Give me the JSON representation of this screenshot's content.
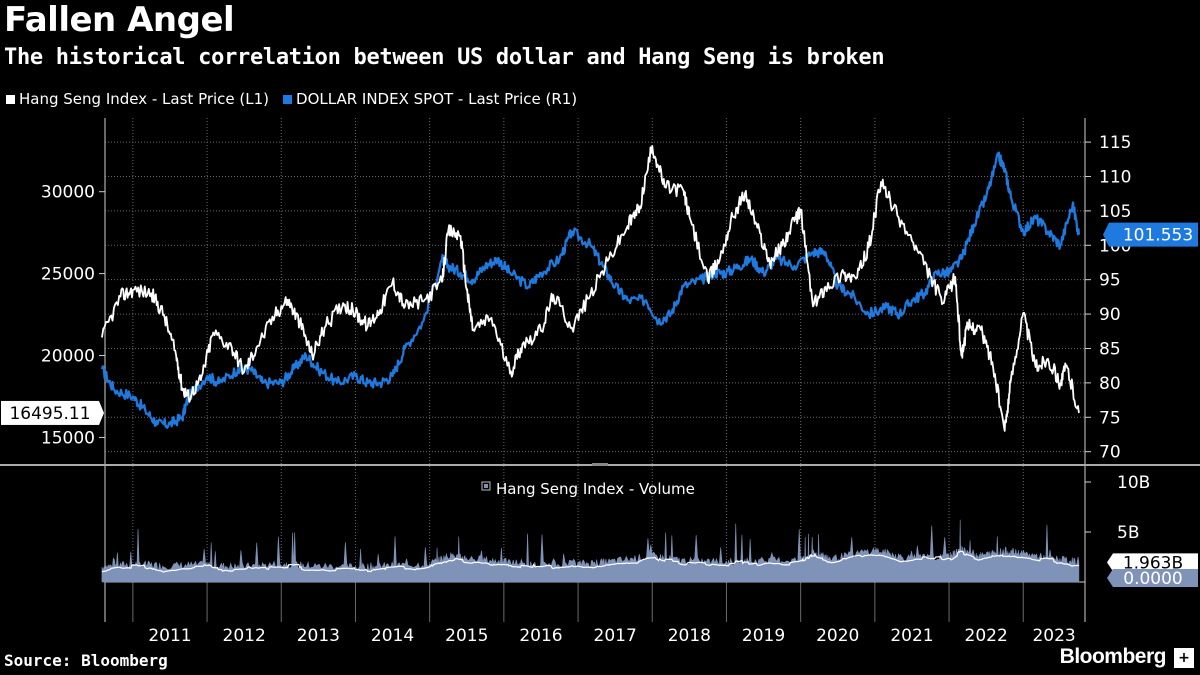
{
  "header": {
    "title": "Fallen Angel",
    "subtitle": "The historical correlation between US dollar and Hang Seng is broken"
  },
  "footer": {
    "source": "Source: Bloomberg",
    "brand": "Bloomberg",
    "brand_icon": "+"
  },
  "colors": {
    "hsi": "#ffffff",
    "dxy": "#1f7ae0",
    "volume_fill": "#7f93b8",
    "grid": "#6a6a6a",
    "background": "#000000"
  },
  "chart_data": [
    {
      "type": "line",
      "legend_placement": "top-left",
      "grid": true,
      "x_tick_labels": [
        "2011",
        "2012",
        "2013",
        "2014",
        "2015",
        "2016",
        "2017",
        "2018",
        "2019",
        "2020",
        "2021",
        "2022",
        "2023"
      ],
      "xlim": [
        "2010-08-16",
        "2023-10-31"
      ],
      "y_left": {
        "ticks": [
          15000,
          20000,
          25000,
          30000
        ],
        "lim": [
          13500,
          34500
        ]
      },
      "y_right": {
        "ticks": [
          70,
          75,
          80,
          85,
          90,
          95,
          100,
          105,
          110,
          115
        ],
        "lim": [
          68.5,
          118.5
        ]
      },
      "series": [
        {
          "name": "Hang Seng Index - Last Price (L1)",
          "axis": "left",
          "last_value_label": "16495.11",
          "x": [
            "2010-08",
            "2010-11",
            "2011-01",
            "2011-04",
            "2011-06",
            "2011-08",
            "2011-09",
            "2011-10",
            "2011-12",
            "2012-02",
            "2012-05",
            "2012-07",
            "2012-09",
            "2012-12",
            "2013-02",
            "2013-04",
            "2013-06",
            "2013-08",
            "2013-11",
            "2014-01",
            "2014-03",
            "2014-05",
            "2014-07",
            "2014-09",
            "2014-12",
            "2015-03",
            "2015-04",
            "2015-06",
            "2015-07",
            "2015-08",
            "2015-11",
            "2016-02",
            "2016-04",
            "2016-07",
            "2016-09",
            "2016-12",
            "2017-03",
            "2017-06",
            "2017-09",
            "2017-11",
            "2018-01",
            "2018-03",
            "2018-06",
            "2018-07",
            "2018-10",
            "2018-12",
            "2019-02",
            "2019-04",
            "2019-06",
            "2019-08",
            "2019-10",
            "2019-12",
            "2020-01",
            "2020-03",
            "2020-05",
            "2020-08",
            "2020-10",
            "2020-12",
            "2021-02",
            "2021-04",
            "2021-07",
            "2021-10",
            "2021-12",
            "2022-02",
            "2022-03",
            "2022-04",
            "2022-06",
            "2022-08",
            "2022-10",
            "2022-11",
            "2023-01",
            "2023-03",
            "2023-05",
            "2023-07",
            "2023-08",
            "2023-10"
          ],
          "values": [
            21100,
            23600,
            24000,
            23800,
            22500,
            20000,
            18000,
            17500,
            18500,
            21400,
            20500,
            19000,
            20500,
            22500,
            23400,
            22000,
            20000,
            21700,
            23200,
            22600,
            21800,
            22800,
            24500,
            23000,
            23300,
            24500,
            27600,
            27300,
            24000,
            21600,
            22300,
            18900,
            20700,
            21500,
            23700,
            21700,
            23700,
            25900,
            27900,
            29100,
            32800,
            30300,
            30100,
            28500,
            24600,
            26000,
            28500,
            29900,
            27800,
            25700,
            26700,
            28200,
            28900,
            23000,
            24200,
            25000,
            24700,
            26600,
            30600,
            29000,
            27000,
            24800,
            23200,
            24800,
            20000,
            21800,
            21700,
            19600,
            15400,
            18500,
            22600,
            19300,
            19800,
            18300,
            19400,
            16495
          ]
        },
        {
          "name": "DOLLAR INDEX SPOT - Last Price (R1)",
          "axis": "right",
          "last_value_label": "101.553",
          "x": [
            "2010-08",
            "2010-10",
            "2011-01",
            "2011-03",
            "2011-05",
            "2011-07",
            "2011-09",
            "2011-10",
            "2012-01",
            "2012-03",
            "2012-06",
            "2012-08",
            "2012-10",
            "2013-01",
            "2013-03",
            "2013-05",
            "2013-07",
            "2013-10",
            "2014-01",
            "2014-03",
            "2014-05",
            "2014-07",
            "2014-09",
            "2014-12",
            "2015-03",
            "2015-04",
            "2015-06",
            "2015-08",
            "2015-10",
            "2015-12",
            "2016-02",
            "2016-05",
            "2016-07",
            "2016-10",
            "2016-12",
            "2017-03",
            "2017-05",
            "2017-07",
            "2017-09",
            "2017-12",
            "2018-02",
            "2018-04",
            "2018-06",
            "2018-09",
            "2018-11",
            "2019-01",
            "2019-03",
            "2019-05",
            "2019-07",
            "2019-09",
            "2019-12",
            "2020-03",
            "2020-05",
            "2020-07",
            "2020-09",
            "2020-12",
            "2021-03",
            "2021-05",
            "2021-07",
            "2021-09",
            "2021-11",
            "2022-01",
            "2022-03",
            "2022-05",
            "2022-07",
            "2022-09",
            "2022-10",
            "2022-11",
            "2023-01",
            "2023-03",
            "2023-05",
            "2023-07",
            "2023-09",
            "2023-10"
          ],
          "values": [
            82,
            79,
            78,
            76,
            74,
            74,
            75,
            78,
            81,
            80,
            82,
            82,
            80,
            80,
            82,
            84,
            82,
            80,
            81,
            80,
            80,
            81,
            85,
            89,
            98,
            97,
            96,
            95,
            97,
            98,
            96,
            94,
            96,
            98,
            102,
            100,
            97,
            94,
            92,
            92,
            89,
            90,
            94,
            95,
            96,
            96,
            97,
            98,
            96,
            98,
            97,
            99,
            99,
            94,
            93,
            90,
            91,
            90,
            92,
            93,
            96,
            96,
            98,
            103,
            107,
            113,
            111,
            107,
            102,
            104,
            102,
            100,
            106,
            101.553
          ]
        }
      ]
    },
    {
      "type": "area",
      "legend_placement": "top-center",
      "grid": true,
      "y_right": {
        "ticks": [
          "0.0000",
          "5B",
          "10B"
        ],
        "lim": [
          0,
          11
        ]
      },
      "series": [
        {
          "name": "Hang Seng Index - Volume",
          "last_value_label": "1.963B",
          "zero_label": "0.0000",
          "x": [
            "2010-08",
            "2011-01",
            "2011-06",
            "2012-01",
            "2012-06",
            "2013-01",
            "2013-06",
            "2014-01",
            "2014-06",
            "2015-01",
            "2015-04",
            "2015-07",
            "2016-01",
            "2016-06",
            "2017-01",
            "2017-06",
            "2018-01",
            "2018-06",
            "2019-01",
            "2019-06",
            "2020-01",
            "2020-03",
            "2020-06",
            "2021-01",
            "2021-06",
            "2022-01",
            "2022-03",
            "2022-06",
            "2022-10",
            "2023-01",
            "2023-06",
            "2023-10"
          ],
          "values": [
            1.5,
            1.8,
            1.6,
            1.7,
            1.5,
            1.8,
            1.6,
            1.5,
            1.6,
            1.8,
            2.6,
            2.4,
            2.0,
            1.7,
            1.8,
            2.0,
            2.6,
            2.1,
            2.0,
            2.1,
            2.2,
            2.9,
            2.3,
            3.2,
            2.4,
            2.5,
            3.3,
            2.6,
            3.1,
            2.8,
            2.3,
            1.963
          ]
        }
      ]
    }
  ]
}
